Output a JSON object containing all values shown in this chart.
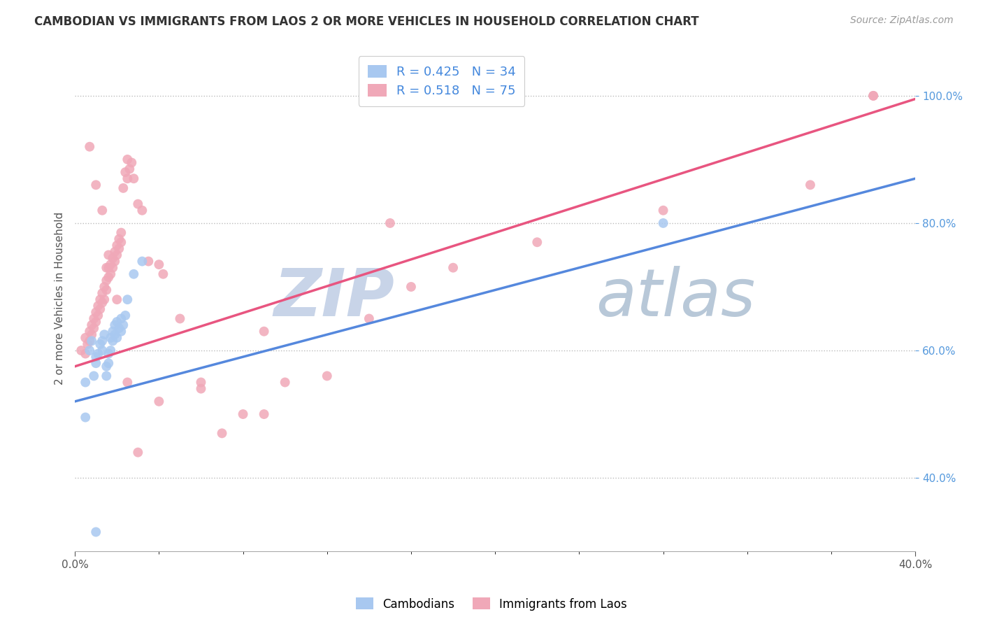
{
  "title": "CAMBODIAN VS IMMIGRANTS FROM LAOS 2 OR MORE VEHICLES IN HOUSEHOLD CORRELATION CHART",
  "source": "Source: ZipAtlas.com",
  "ylabel": "2 or more Vehicles in Household",
  "y_tick_values": [
    0.4,
    0.6,
    0.8,
    1.0
  ],
  "xmin": 0.0,
  "xmax": 0.4,
  "ymin": 0.285,
  "ymax": 1.08,
  "legend_blue_label": "R = 0.425   N = 34",
  "legend_pink_label": "R = 0.518   N = 75",
  "blue_color": "#A8C8F0",
  "pink_color": "#F0A8B8",
  "blue_line_color": "#5588DD",
  "pink_line_color": "#E85580",
  "watermark_text": "ZIP",
  "watermark_text2": "atlas",
  "watermark_color": "#C8D4E8",
  "watermark_color2": "#B8C8D8",
  "cambodians_x": [
    0.005,
    0.005,
    0.007,
    0.008,
    0.009,
    0.01,
    0.01,
    0.011,
    0.012,
    0.013,
    0.013,
    0.014,
    0.015,
    0.015,
    0.016,
    0.016,
    0.017,
    0.017,
    0.018,
    0.018,
    0.019,
    0.019,
    0.02,
    0.02,
    0.021,
    0.022,
    0.022,
    0.023,
    0.024,
    0.025,
    0.028,
    0.032,
    0.28,
    0.01
  ],
  "cambodians_y": [
    0.55,
    0.495,
    0.6,
    0.615,
    0.56,
    0.58,
    0.59,
    0.595,
    0.61,
    0.6,
    0.615,
    0.625,
    0.56,
    0.575,
    0.58,
    0.595,
    0.6,
    0.62,
    0.63,
    0.615,
    0.625,
    0.64,
    0.645,
    0.62,
    0.635,
    0.63,
    0.65,
    0.64,
    0.655,
    0.68,
    0.72,
    0.74,
    0.8,
    0.315
  ],
  "laos_x": [
    0.003,
    0.005,
    0.005,
    0.006,
    0.007,
    0.007,
    0.008,
    0.008,
    0.009,
    0.009,
    0.01,
    0.01,
    0.011,
    0.011,
    0.012,
    0.012,
    0.013,
    0.013,
    0.014,
    0.014,
    0.015,
    0.015,
    0.015,
    0.016,
    0.016,
    0.017,
    0.017,
    0.018,
    0.018,
    0.019,
    0.019,
    0.02,
    0.02,
    0.021,
    0.021,
    0.022,
    0.022,
    0.023,
    0.024,
    0.025,
    0.025,
    0.026,
    0.027,
    0.028,
    0.03,
    0.032,
    0.035,
    0.04,
    0.042,
    0.05,
    0.06,
    0.07,
    0.08,
    0.09,
    0.1,
    0.12,
    0.14,
    0.16,
    0.18,
    0.22,
    0.28,
    0.35,
    0.38,
    0.007,
    0.01,
    0.013,
    0.016,
    0.02,
    0.025,
    0.03,
    0.04,
    0.06,
    0.09,
    0.15,
    0.38
  ],
  "laos_y": [
    0.6,
    0.595,
    0.62,
    0.61,
    0.615,
    0.63,
    0.625,
    0.64,
    0.635,
    0.65,
    0.645,
    0.66,
    0.655,
    0.67,
    0.665,
    0.68,
    0.675,
    0.69,
    0.68,
    0.7,
    0.695,
    0.71,
    0.73,
    0.715,
    0.73,
    0.72,
    0.735,
    0.73,
    0.745,
    0.74,
    0.755,
    0.75,
    0.765,
    0.76,
    0.775,
    0.77,
    0.785,
    0.855,
    0.88,
    0.87,
    0.9,
    0.885,
    0.895,
    0.87,
    0.83,
    0.82,
    0.74,
    0.735,
    0.72,
    0.65,
    0.55,
    0.47,
    0.5,
    0.5,
    0.55,
    0.56,
    0.65,
    0.7,
    0.73,
    0.77,
    0.82,
    0.86,
    1.0,
    0.92,
    0.86,
    0.82,
    0.75,
    0.68,
    0.55,
    0.44,
    0.52,
    0.54,
    0.63,
    0.8,
    1.0
  ],
  "blue_trend_x0": 0.0,
  "blue_trend_y0": 0.52,
  "blue_trend_x1": 0.4,
  "blue_trend_y1": 0.87,
  "pink_trend_x0": 0.0,
  "pink_trend_y0": 0.575,
  "pink_trend_x1": 0.4,
  "pink_trend_y1": 0.995
}
